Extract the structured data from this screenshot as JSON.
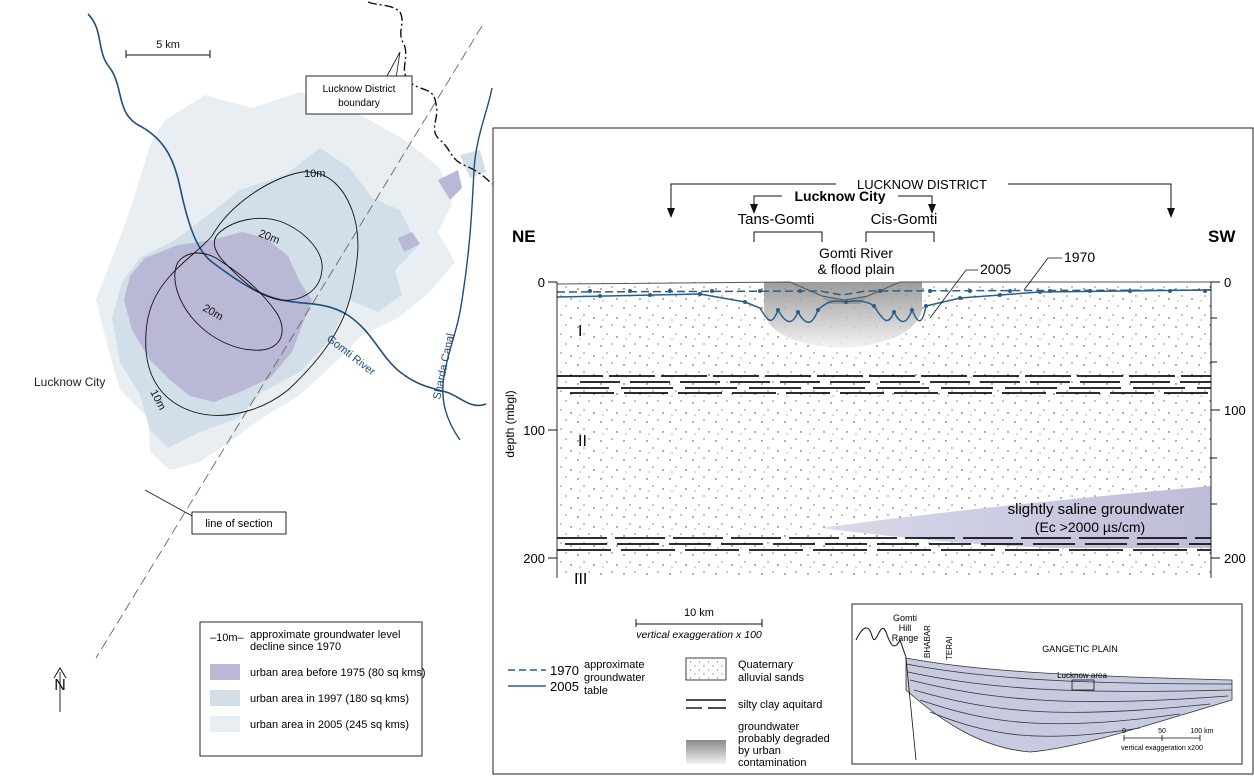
{
  "map": {
    "scale_label": "5 km",
    "district_boundary_label_1": "Lucknow District",
    "district_boundary_label_2": "boundary",
    "contour_10m_a": "10m",
    "contour_20m_a": "20m",
    "contour_20m_b": "20m",
    "contour_10m_b": "10m",
    "river_label": "Gomti River",
    "canal_label": "Sharda Canal",
    "city_label": "Lucknow City",
    "section_label": "line of section",
    "north_label": "N",
    "legend": {
      "contour_symbol": "–10m–",
      "contour_text_1": "approximate groundwater level",
      "contour_text_2": "decline since 1970",
      "items": [
        {
          "label": "urban area before 1975 (80 sq kms)",
          "color": "#b9b8d6"
        },
        {
          "label": "urban area in 1997 (180 sq kms)",
          "color": "#d3dfe8"
        },
        {
          "label": "urban area in 2005 (245 sq kms)",
          "color": "#e9eef2"
        }
      ]
    }
  },
  "section": {
    "district_label": "LUCKNOW DISTRICT",
    "city_label": "Lucknow City",
    "trans_gomti": "Tans-Gomti",
    "cis_gomti": "Cis-Gomti",
    "ne": "NE",
    "sw": "SW",
    "river_line1": "Gomti River",
    "river_line2": "& flood plain",
    "year_2005": "2005",
    "year_1970": "1970",
    "left_ticks": [
      "0",
      "100",
      "200"
    ],
    "right_ticks": [
      "0",
      "100",
      "200"
    ],
    "y_axis_label": "depth (mbgl)",
    "aquifer_1": "I",
    "aquifer_2": "II",
    "aquifer_3": "III",
    "saline_line1": "slightly saline groundwater",
    "saline_line2": "(Ec >2000 µs/cm)",
    "scale_label": "10 km",
    "vertical_exaggeration": "vertical exaggeration x 100"
  },
  "section_legend": {
    "y1970": "1970",
    "y2005": "2005",
    "approx1": "approximate",
    "approx2": "groundwater",
    "approx3": "table",
    "sands1": "Quaternary",
    "sands2": "alluvial sands",
    "aquitard": "silty clay aquitard",
    "degraded1": "groundwater",
    "degraded2": "probably degraded",
    "degraded3": "by urban",
    "degraded4": "contamination"
  },
  "inset": {
    "gomti1": "Gomti",
    "gomti2": "Hill",
    "gomti3": "Range",
    "bhabar": "BHABAR",
    "terai": "TERAI",
    "plain": "GANGETIC PLAIN",
    "lucknow_area": "Lucknow area",
    "scale_ticks": [
      "0",
      "50",
      "100 km"
    ],
    "vertical_exaggeration": "vertical exaggeration x200"
  },
  "colors": {
    "river": "#1f4e79",
    "urban_1975": "#b9b8d6",
    "urban_1997": "#d3dfe8",
    "urban_2005": "#e9eef2",
    "saline": "#c8c8de",
    "water_table": "#2a5d8a"
  }
}
